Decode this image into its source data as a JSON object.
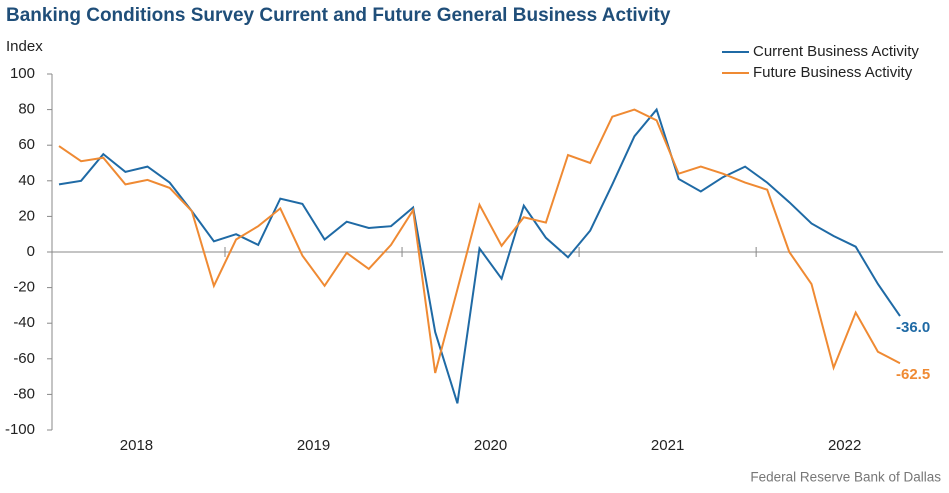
{
  "chart_data": {
    "type": "line",
    "title": "Banking Conditions Survey Current and Future General Business Activity",
    "y_label": "Index",
    "source": "Federal Reserve Bank of Dallas",
    "categories": [
      null,
      null,
      null,
      "2018",
      null,
      null,
      null,
      null,
      null,
      null,
      null,
      "2019",
      null,
      null,
      null,
      null,
      null,
      null,
      null,
      "2020",
      null,
      null,
      null,
      null,
      null,
      null,
      null,
      "2021",
      null,
      null,
      null,
      null,
      null,
      null,
      null,
      "2022",
      null,
      null,
      null
    ],
    "series": [
      {
        "name": "Current Business Activity",
        "color": "#1f6aa5",
        "values": [
          38,
          40,
          55,
          45,
          48,
          39,
          23,
          6,
          10,
          4,
          30,
          27,
          7,
          17,
          13.5,
          14.5,
          25,
          -45,
          -85,
          2,
          -15,
          26,
          8,
          -3,
          12,
          38,
          65,
          80,
          41,
          34,
          42,
          48,
          39,
          28,
          16,
          9,
          3,
          -18,
          -36
        ],
        "value_labels": [
          null,
          null,
          null,
          null,
          null,
          null,
          null,
          null,
          null,
          null,
          null,
          null,
          null,
          null,
          null,
          null,
          null,
          null,
          null,
          null,
          null,
          null,
          null,
          null,
          null,
          null,
          null,
          null,
          null,
          null,
          null,
          null,
          null,
          null,
          null,
          null,
          null,
          null,
          "-36.0"
        ]
      },
      {
        "name": "Future Business Activity",
        "color": "#ef8a33",
        "values": [
          59.5,
          51,
          53,
          38,
          40.5,
          36,
          23,
          -19,
          7,
          14.5,
          24.5,
          -2,
          -19,
          -0.5,
          -9.5,
          4,
          23.5,
          -68,
          -21,
          26.5,
          3.5,
          19.5,
          16.5,
          54.5,
          50,
          76,
          80,
          74,
          44,
          48,
          44,
          39,
          35,
          0,
          -18,
          -65,
          -34,
          -56,
          -62.5
        ],
        "value_labels": [
          null,
          null,
          null,
          null,
          null,
          null,
          null,
          null,
          null,
          null,
          null,
          null,
          null,
          null,
          null,
          null,
          null,
          null,
          null,
          null,
          null,
          null,
          null,
          null,
          null,
          null,
          null,
          null,
          null,
          null,
          null,
          null,
          null,
          null,
          null,
          null,
          null,
          null,
          "-62.5"
        ]
      }
    ],
    "ylim": [
      -100,
      100
    ],
    "yticks": [
      -100,
      -80,
      -60,
      -40,
      -20,
      0,
      20,
      40,
      60,
      80,
      100
    ],
    "grid": false,
    "legend": "top-right"
  }
}
